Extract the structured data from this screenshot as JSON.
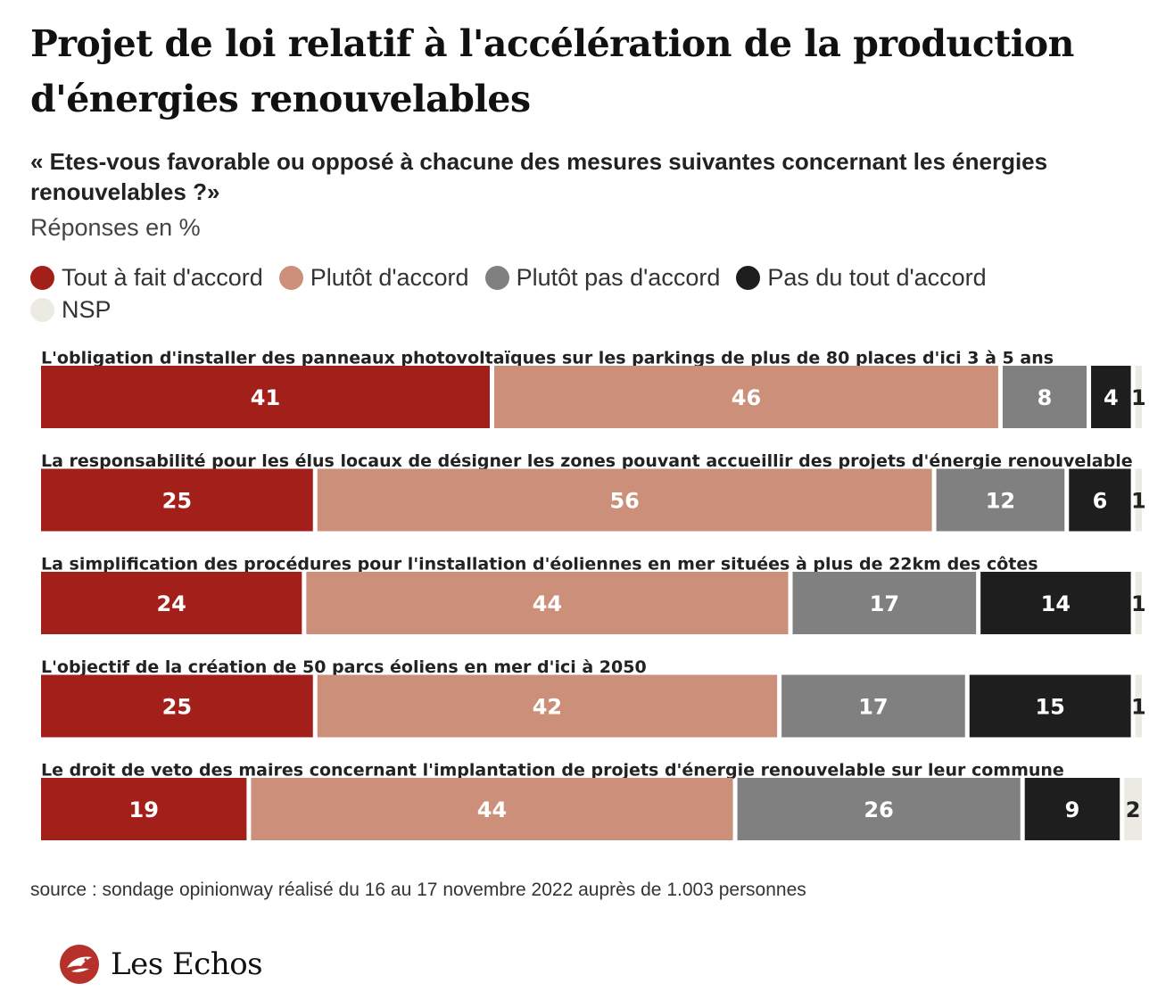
{
  "title": "Projet de loi relatif à l'accélération de la production d'énergies renouvelables",
  "subtitle": "« Etes-vous favorable ou opposé à chacune des mesures suivantes concernant les énergies renouvelables ?»",
  "unit": "Réponses en %",
  "source": "source : sondage opinionway réalisé du 16 au 17 novembre 2022 auprès de 1.003 personnes",
  "brand": {
    "name": "Les Echos",
    "logo_icon": "les-echos-emblem-icon",
    "logo_color": "#b5312a"
  },
  "legend": [
    {
      "label": "Tout à fait d'accord",
      "color": "#a31f1a"
    },
    {
      "label": "Plutôt d'accord",
      "color": "#cc8f79"
    },
    {
      "label": "Plutôt pas d'accord",
      "color": "#808080"
    },
    {
      "label": "Pas du tout d'accord",
      "color": "#1e1e1e"
    },
    {
      "label": "NSP",
      "color": "#ebebe4"
    }
  ],
  "chart_data": {
    "type": "bar",
    "orientation": "horizontal",
    "stacked": true,
    "unit": "%",
    "categories": [
      "L'obligation d'installer des panneaux photovoltaïques sur les parkings de plus de 80 places d'ici 3 à 5 ans",
      "La responsabilité pour les élus locaux de désigner les zones pouvant accueillir des projets d'énergie renouvelable",
      "La simplification des procédures pour l'installation d'éoliennes en mer situées à plus de 22km des côtes",
      "L'objectif de la création de 50 parcs éoliens en mer d'ici à 2050",
      "Le droit de veto des maires concernant l'implantation de projets d'énergie renouvelable sur leur commune"
    ],
    "series": [
      {
        "name": "Tout à fait d'accord",
        "color": "#a31f1a",
        "label_color": "#ffffff",
        "values": [
          41,
          25,
          24,
          25,
          19
        ]
      },
      {
        "name": "Plutôt d'accord",
        "color": "#cc8f79",
        "label_color": "#ffffff",
        "values": [
          46,
          56,
          44,
          42,
          44
        ]
      },
      {
        "name": "Plutôt pas d'accord",
        "color": "#808080",
        "label_color": "#ffffff",
        "values": [
          8,
          12,
          17,
          17,
          26
        ]
      },
      {
        "name": "Pas du tout d'accord",
        "color": "#1e1e1e",
        "label_color": "#ffffff",
        "values": [
          4,
          6,
          14,
          15,
          9
        ]
      },
      {
        "name": "NSP",
        "color": "#ebebe4",
        "label_color": "#222222",
        "values": [
          1,
          1,
          1,
          1,
          2
        ]
      }
    ],
    "xlim": [
      0,
      100
    ],
    "grid": false,
    "legend_position": "top"
  }
}
